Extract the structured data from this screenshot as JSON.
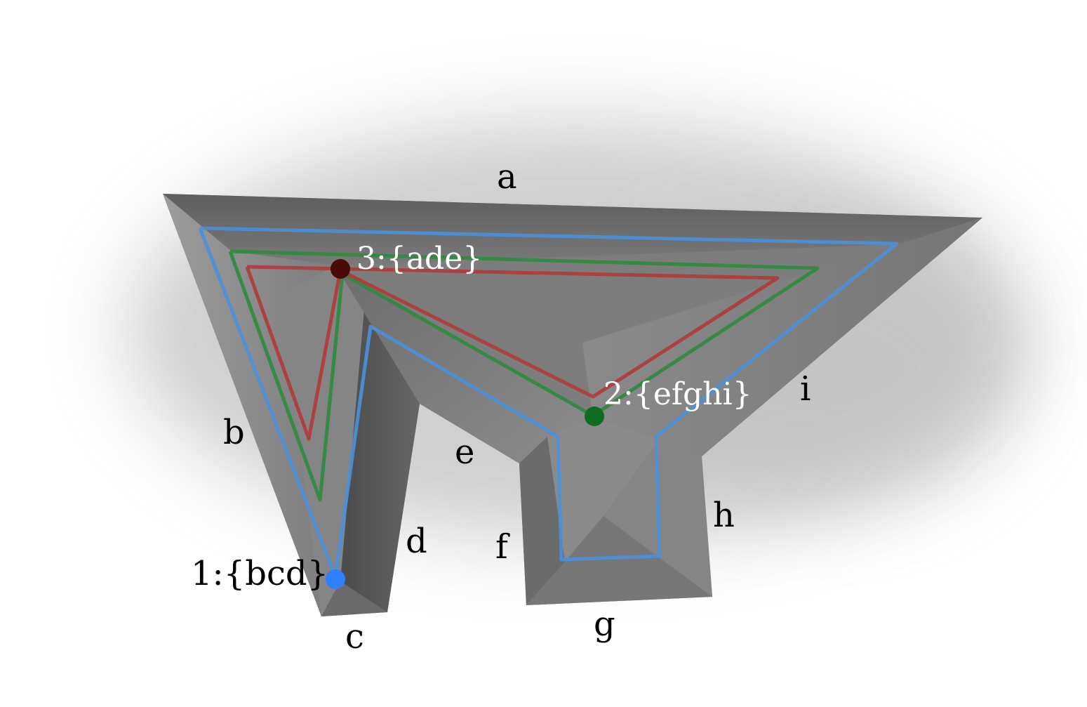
{
  "colors": {
    "background": "#ffffff",
    "surface": "#7a7a7a",
    "surface_light": "#9a9a9a",
    "surface_dark": "#555555",
    "contour_blue": "#4a90d9",
    "contour_green": "#2e8b3e",
    "contour_red": "#b03a3a",
    "vertex_blue": "#2f7fff",
    "vertex_green": "#0f6b1f",
    "vertex_dark_red": "#4a0a0a",
    "label_dark": "#000000",
    "label_light": "#ffffff"
  },
  "edge_labels": [
    "a",
    "b",
    "c",
    "d",
    "e",
    "f",
    "g",
    "h",
    "i"
  ],
  "vertex_labels": {
    "v1": "1:{bcd}",
    "v2": "2:{efghi}",
    "v3": "3:{ade}"
  },
  "contours": [
    "blue-offset-contour",
    "green-offset-contour",
    "red-offset-contour"
  ]
}
